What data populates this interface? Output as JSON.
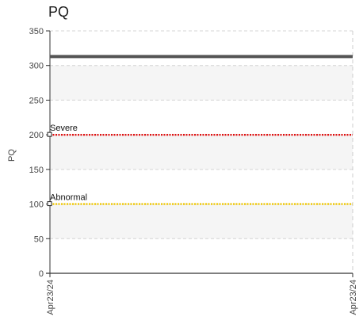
{
  "chart_data": {
    "type": "line",
    "title": "PQ",
    "ylabel": "PQ",
    "xlabel": "",
    "ylim": [
      0,
      350
    ],
    "yticks": [
      0,
      50,
      100,
      150,
      200,
      250,
      300,
      350
    ],
    "x_tick_labels": [
      "Apr23/24",
      "Apr23/24"
    ],
    "grid": true,
    "series": [
      {
        "values": [
          313,
          313
        ],
        "color": "#555555",
        "style": "solid"
      }
    ],
    "thresholds": [
      {
        "label": "Severe",
        "value": 200,
        "color": "#e01010",
        "style": "dotted"
      },
      {
        "label": "Abnormal",
        "value": 100,
        "color": "#f0c800",
        "style": "dotted"
      }
    ],
    "band_color": "#f5f5f5"
  }
}
